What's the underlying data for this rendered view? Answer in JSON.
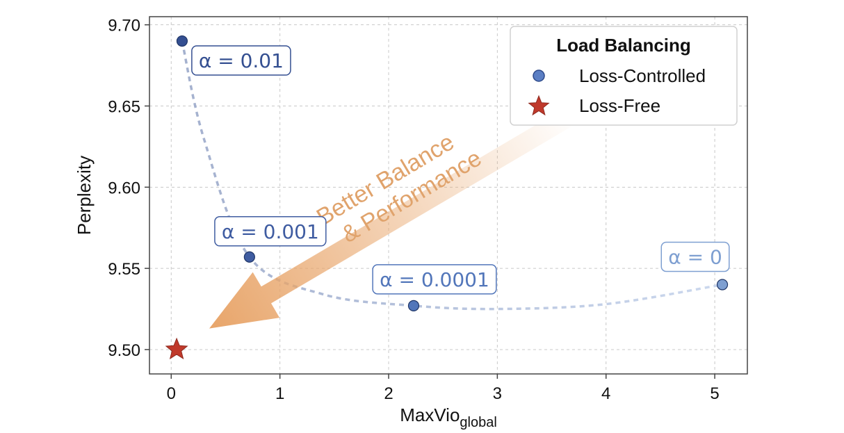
{
  "chart_data": {
    "type": "scatter",
    "title": "",
    "xlabel": "MaxVio",
    "xlabel_subscript": "global",
    "ylabel": "Perplexity",
    "xlim": [
      -0.2,
      5.3
    ],
    "ylim": [
      9.485,
      9.705
    ],
    "x_ticks": [
      "0",
      "1",
      "2",
      "3",
      "4",
      "5"
    ],
    "x_tick_values": [
      0,
      1,
      2,
      3,
      4,
      5
    ],
    "y_ticks": [
      "9.50",
      "9.55",
      "9.60",
      "9.65",
      "9.70"
    ],
    "y_tick_values": [
      9.5,
      9.55,
      9.6,
      9.65,
      9.7
    ],
    "grid": true,
    "legend": {
      "title": "Load Balancing",
      "position": "top-right",
      "entries": [
        {
          "label": "Loss-Controlled",
          "marker": "circle",
          "color": "#5b7fc4"
        },
        {
          "label": "Loss-Free",
          "marker": "star",
          "color": "#c0392b"
        }
      ]
    },
    "series": [
      {
        "name": "Loss-Controlled",
        "marker": "circle",
        "points": [
          {
            "x": 0.1,
            "y": 9.69,
            "label": "α = 0.01",
            "color": "#344f91"
          },
          {
            "x": 0.72,
            "y": 9.557,
            "label": "α = 0.001",
            "color": "#3f5ca1"
          },
          {
            "x": 2.23,
            "y": 9.527,
            "label": "α = 0.0001",
            "color": "#5276ba"
          },
          {
            "x": 5.07,
            "y": 9.54,
            "label": "α = 0",
            "color": "#7e9fd1"
          }
        ]
      },
      {
        "name": "Loss-Free",
        "marker": "star",
        "points": [
          {
            "x": 0.05,
            "y": 9.5,
            "color": "#c0392b"
          }
        ]
      }
    ],
    "trend_curve": [
      [
        0.1,
        9.69
      ],
      [
        0.3,
        9.63
      ],
      [
        0.72,
        9.557
      ],
      [
        1.4,
        9.534
      ],
      [
        2.23,
        9.527
      ],
      [
        3.0,
        9.525
      ],
      [
        4.0,
        9.528
      ],
      [
        5.07,
        9.54
      ]
    ],
    "annotation_arrow": {
      "text_lines": [
        "Better Balance",
        "& Performance"
      ],
      "from": [
        3.7,
        9.645
      ],
      "to": [
        0.35,
        9.513
      ],
      "color": "#e8a56a"
    }
  }
}
